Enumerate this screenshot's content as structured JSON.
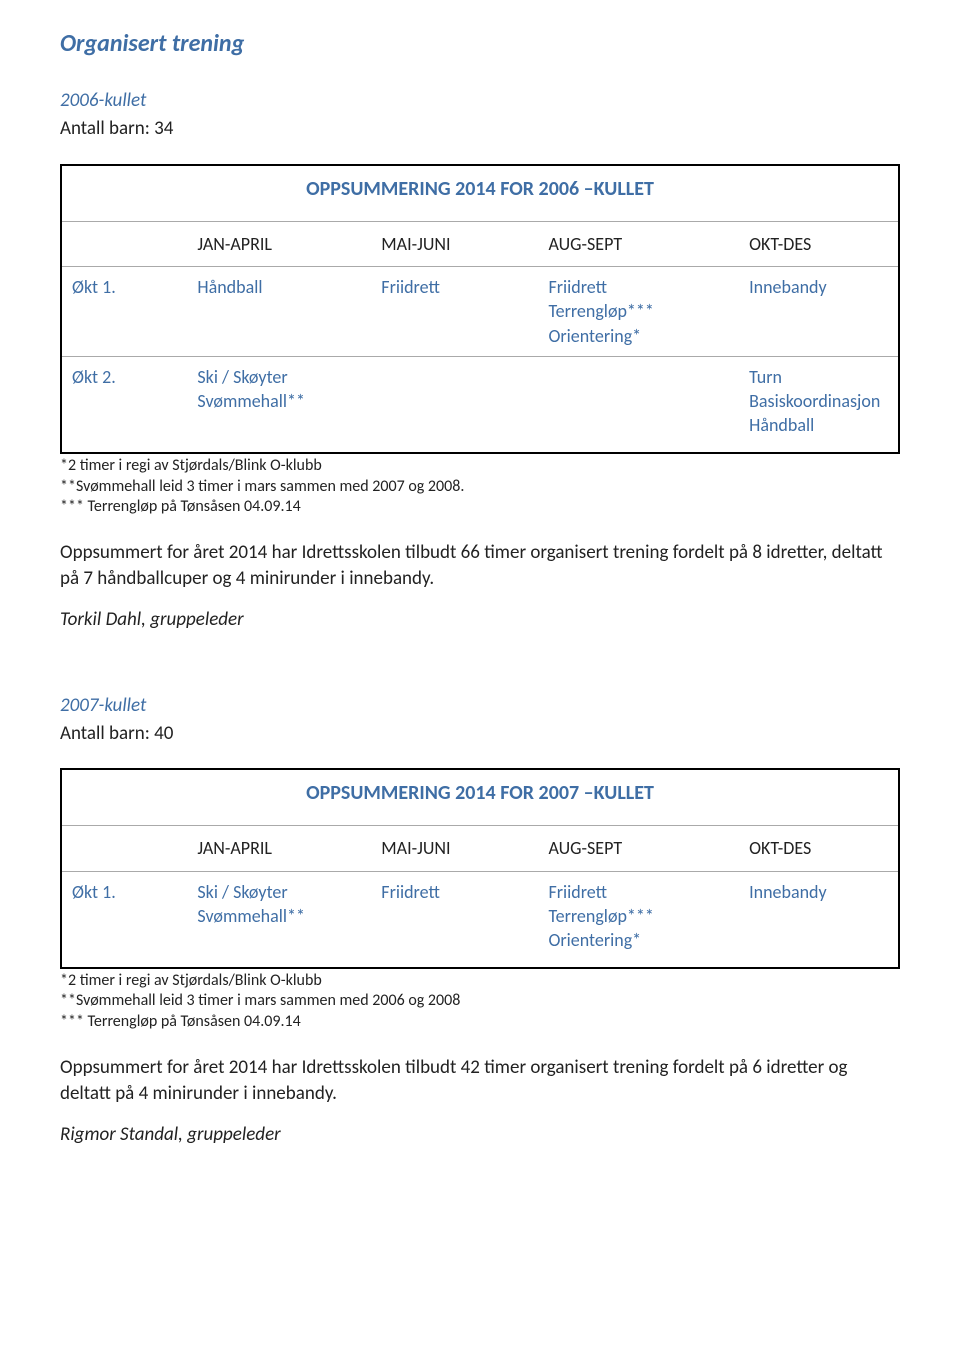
{
  "page_title": "Organisert trening",
  "sections": [
    {
      "sub_label": "2006-kullet",
      "count_line": "Antall barn: 34",
      "table_title": "OPPSUMMERING 2014 FOR 2006 –KULLET",
      "columns": [
        "",
        "JAN-APRIL",
        "MAI-JUNI",
        "AUG-SEPT",
        "OKT-DES"
      ],
      "rows": [
        {
          "label": "Økt 1.",
          "c1": [
            "Håndball"
          ],
          "c2": [
            "Friidrett"
          ],
          "c3": [
            "Friidrett",
            "Terrengløp***",
            "Orientering*"
          ],
          "c4": [
            "Innebandy"
          ]
        },
        {
          "label": "Økt 2.",
          "c1": [
            "Ski / Skøyter",
            "Svømmehall**"
          ],
          "c2": [],
          "c3": [],
          "c4": [
            "Turn",
            "Basiskoordinasjon",
            "Håndball"
          ]
        }
      ],
      "notes": [
        "*2 timer i regi av Stjørdals/Blink O-klubb",
        "**Svømmehall leid 3 timer i mars sammen med 2007 og 2008.",
        "*** Terrengløp på Tønsåsen 04.09.14"
      ],
      "summary": "Oppsummert for året 2014 har Idrettsskolen tilbudt 66 timer organisert trening fordelt på 8 idretter, deltatt på 7 håndballcuper og 4 minirunder i innebandy.",
      "signature": "Torkil Dahl, gruppeleder"
    },
    {
      "sub_label": "2007-kullet",
      "count_line": "Antall barn: 40",
      "table_title": "OPPSUMMERING 2014 FOR 2007 –KULLET",
      "columns": [
        "",
        "JAN-APRIL",
        "MAI-JUNI",
        "AUG-SEPT",
        "OKT-DES"
      ],
      "rows": [
        {
          "label": "Økt 1.",
          "c1": [
            "Ski / Skøyter",
            "Svømmehall**"
          ],
          "c2": [
            "Friidrett"
          ],
          "c3": [
            "Friidrett",
            "Terrengløp***",
            "Orientering*"
          ],
          "c4": [
            "Innebandy"
          ]
        }
      ],
      "notes": [
        "*2 timer i regi av Stjørdals/Blink O-klubb",
        "**Svømmehall leid 3 timer i mars sammen med 2006 og 2008",
        "*** Terrengløp på Tønsåsen 04.09.14"
      ],
      "summary": "Oppsummert for året 2014 har Idrettsskolen tilbudt 42 timer organisert trening fordelt på 6 idretter og deltatt på 4 minirunder i innebandy.",
      "signature": "Rigmor Standal, gruppeleder"
    }
  ],
  "colors": {
    "heading": "#3f6ea5",
    "text": "#222222",
    "border": "#000000",
    "rule": "#aaaaaa",
    "background": "#ffffff"
  }
}
